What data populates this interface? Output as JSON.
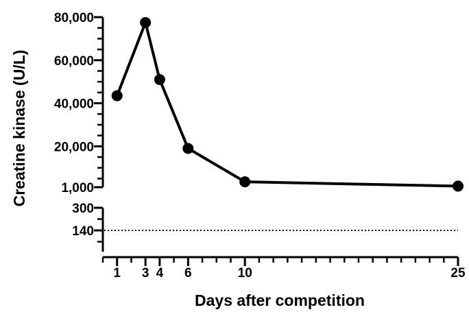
{
  "chart_data": {
    "type": "line",
    "title": "",
    "xlabel": "Days after competition",
    "ylabel": "Creatine kinase (U/L)",
    "x_tick_labels": [
      "1",
      "3",
      "4",
      "6",
      "10",
      "25"
    ],
    "xlim": [
      0,
      25
    ],
    "y_axis_broken": true,
    "y_upper_segment": {
      "range": [
        1000,
        80000
      ],
      "tick_labels": [
        "80,000",
        "60,000",
        "40,000",
        "20,000",
        "1,000"
      ]
    },
    "y_lower_segment": {
      "tick_labels": [
        "300",
        "140"
      ]
    },
    "series": [
      {
        "x": [
          1,
          3,
          4,
          6,
          10,
          25
        ],
        "y": [
          43500,
          77500,
          51000,
          19000,
          3500,
          1500
        ]
      }
    ],
    "reference_line": {
      "value": 140,
      "style": "dotted"
    },
    "grid": false,
    "legend": "none",
    "colors": {
      "line": "#000000",
      "marker": "#000000",
      "axis": "#000000"
    }
  }
}
